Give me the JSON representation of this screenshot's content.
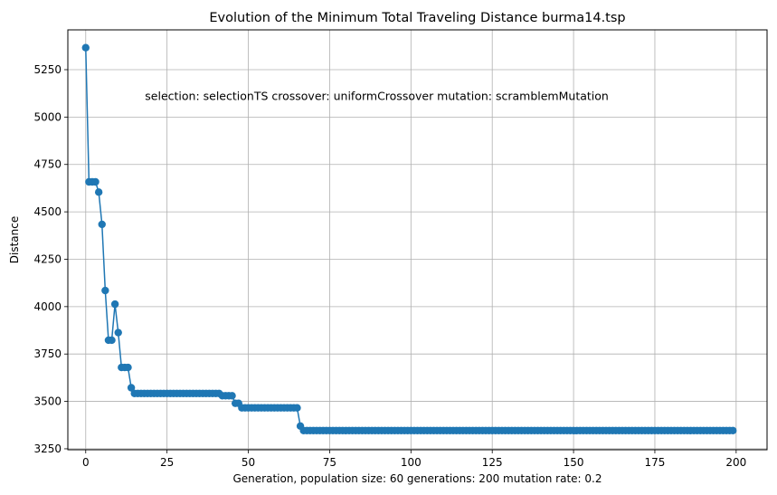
{
  "chart_data": {
    "type": "line",
    "title": "Evolution of the Minimum Total Traveling Distance burma14.tsp",
    "xlabel": "Generation,  population size: 60 generations: 200 mutation rate: 0.2",
    "ylabel": "Distance",
    "annotation": "selection: selectionTS crossover: uniformCrossover mutation: scramblemMutation",
    "xlim": [
      -5.5,
      209.5
    ],
    "ylim": [
      3245,
      5460
    ],
    "x_ticks": [
      0,
      25,
      50,
      75,
      100,
      125,
      150,
      175,
      200
    ],
    "y_ticks": [
      3250,
      3500,
      3750,
      4000,
      4250,
      4500,
      4750,
      5000,
      5250
    ],
    "grid": true,
    "line_color": "#1f77b4",
    "marker": "circle",
    "segments": [
      {
        "start": 0,
        "values": [
          5366,
          4658,
          4658,
          4658,
          4604,
          4434,
          4085,
          3823,
          3823,
          4013,
          3863,
          3679,
          3679,
          3679,
          3572
        ]
      },
      {
        "start": 15,
        "end": 41,
        "value": 3542
      },
      {
        "start": 42,
        "end": 45,
        "value": 3530
      },
      {
        "start": 46,
        "end": 47,
        "value": 3490
      },
      {
        "start": 48,
        "end": 65,
        "value": 3466
      },
      {
        "start": 66,
        "values": [
          3370
        ]
      },
      {
        "start": 67,
        "end": 199,
        "value": 3346
      }
    ]
  }
}
